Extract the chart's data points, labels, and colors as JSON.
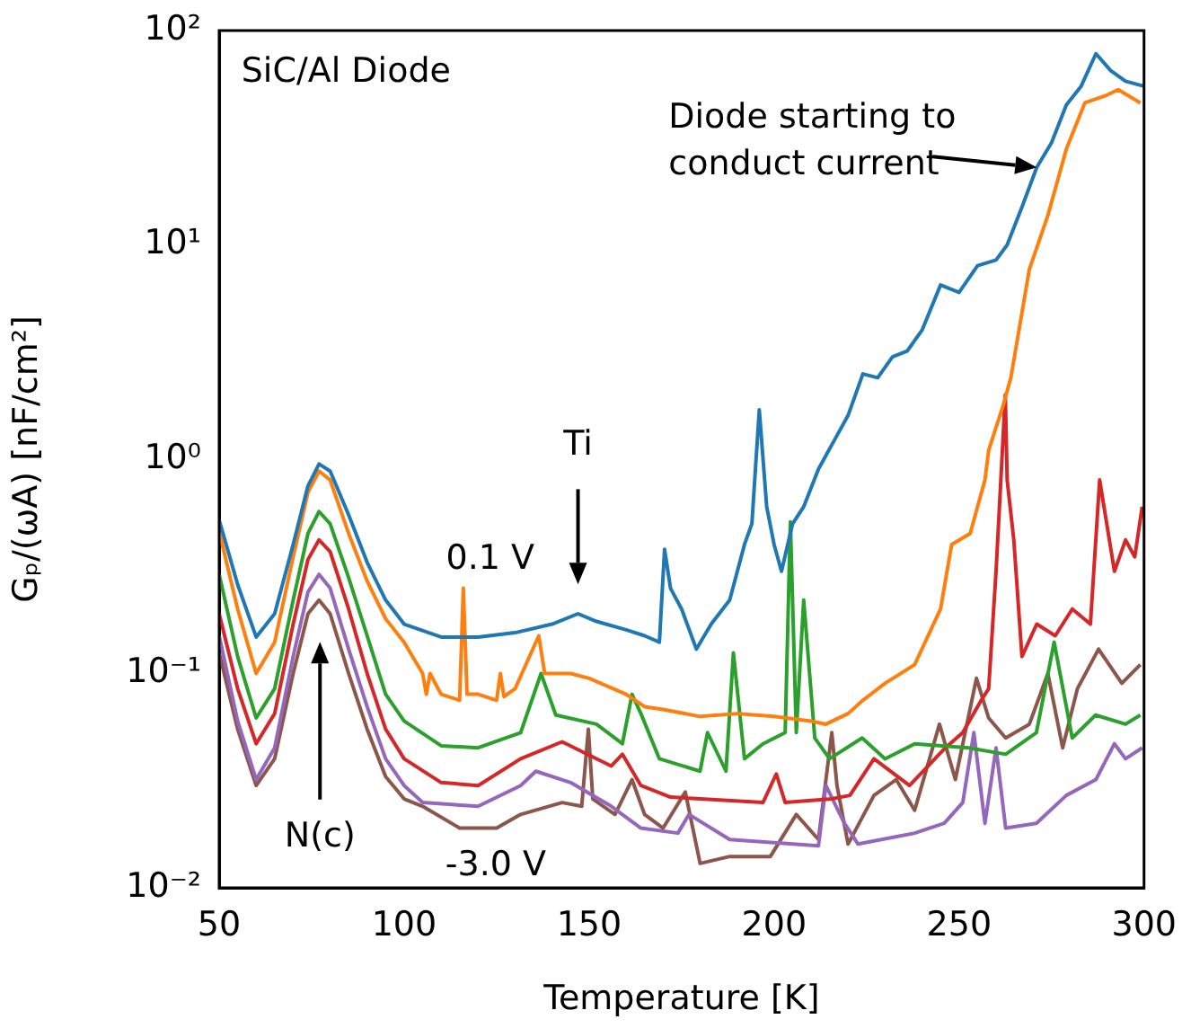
{
  "chart_data": {
    "type": "line",
    "xlabel": "Temperature [K]",
    "ylabel": "Gₚ/(ωA) [nF/cm²]",
    "xlim": [
      50,
      300
    ],
    "xticks": [
      50,
      100,
      150,
      200,
      250,
      300
    ],
    "ylim": [
      0.01,
      100
    ],
    "yticks": [
      {
        "value": 0.01,
        "label": "10⁻²"
      },
      {
        "value": 0.1,
        "label": "10⁻¹"
      },
      {
        "value": 1,
        "label": "10⁰"
      },
      {
        "value": 10,
        "label": "10¹"
      },
      {
        "value": 100,
        "label": "10²"
      }
    ],
    "log": "y",
    "grid": false,
    "legend": false,
    "marker": "none",
    "line_style": "solid",
    "annotations": [
      "SiC/Al Diode",
      {
        "text": "Diode starting to\nconduct current",
        "x": 271,
        "y": 23
      },
      "Ti",
      "N(c)",
      "0.1 V",
      "-3.0 V"
    ],
    "series": [
      {
        "color": "#1f77b4",
        "x": [
          50,
          55,
          60,
          65,
          70,
          74,
          77,
          80,
          85,
          90,
          95,
          100,
          110,
          120,
          130,
          140,
          147,
          152,
          160,
          165,
          169,
          170.4,
          172,
          175,
          179,
          183,
          188,
          192,
          194,
          196,
          198,
          200,
          202,
          205,
          208,
          212,
          216,
          220,
          224,
          228,
          232,
          236,
          240,
          245,
          250,
          255,
          260,
          263,
          267,
          271,
          275,
          279,
          283,
          287,
          291,
          295,
          300
        ],
        "values": [
          0.52,
          0.26,
          0.148,
          0.19,
          0.4,
          0.75,
          0.95,
          0.88,
          0.55,
          0.33,
          0.22,
          0.17,
          0.148,
          0.148,
          0.155,
          0.17,
          0.19,
          0.175,
          0.16,
          0.15,
          0.14,
          0.38,
          0.25,
          0.2,
          0.13,
          0.17,
          0.22,
          0.4,
          0.5,
          1.7,
          0.6,
          0.4,
          0.3,
          0.5,
          0.6,
          0.9,
          1.2,
          1.6,
          2.5,
          2.4,
          3.0,
          3.2,
          4.0,
          6.5,
          6.0,
          8.0,
          8.5,
          10,
          15,
          23,
          30,
          45,
          55,
          78,
          65,
          58,
          55
        ]
      },
      {
        "color": "#ff7f0e",
        "x": [
          50,
          55,
          60,
          65,
          70,
          74,
          77,
          80,
          85,
          90,
          95,
          100,
          105,
          106,
          107,
          110,
          115,
          116,
          117,
          120,
          125,
          126,
          127,
          130,
          136.4,
          138,
          145,
          150,
          160,
          165,
          170,
          180,
          190,
          200,
          210,
          214,
          220,
          224,
          230,
          238,
          245,
          248,
          253,
          257,
          258,
          262,
          264,
          269,
          274,
          279,
          284,
          290,
          293,
          299
        ],
        "values": [
          0.46,
          0.2,
          0.1,
          0.14,
          0.35,
          0.7,
          0.88,
          0.8,
          0.45,
          0.27,
          0.18,
          0.14,
          0.1,
          0.08,
          0.1,
          0.08,
          0.075,
          0.25,
          0.08,
          0.08,
          0.075,
          0.1,
          0.078,
          0.085,
          0.15,
          0.1,
          0.1,
          0.095,
          0.08,
          0.07,
          0.068,
          0.063,
          0.065,
          0.063,
          0.06,
          0.058,
          0.065,
          0.075,
          0.09,
          0.11,
          0.2,
          0.4,
          0.45,
          0.8,
          1.1,
          1.8,
          2.4,
          7.7,
          13.7,
          28,
          46,
          50,
          53,
          46
        ]
      },
      {
        "color": "#2ca02c",
        "x": [
          50,
          55,
          60,
          65,
          70,
          74,
          77,
          80,
          85,
          90,
          95,
          100,
          110,
          120,
          131.5,
          137,
          141,
          152,
          159,
          161.6,
          164,
          169,
          180,
          182,
          187,
          189,
          192,
          197,
          203,
          204.4,
          206,
          208,
          211,
          215,
          223.8,
          230,
          238,
          252.6,
          262.6,
          270.9,
          275.7,
          280.6,
          286.9,
          295,
          299
        ],
        "values": [
          0.29,
          0.12,
          0.062,
          0.085,
          0.22,
          0.45,
          0.57,
          0.5,
          0.28,
          0.15,
          0.08,
          0.06,
          0.046,
          0.045,
          0.053,
          0.1,
          0.064,
          0.058,
          0.047,
          0.08,
          0.065,
          0.04,
          0.035,
          0.053,
          0.035,
          0.125,
          0.04,
          0.047,
          0.053,
          0.51,
          0.053,
          0.22,
          0.05,
          0.04,
          0.05,
          0.04,
          0.047,
          0.045,
          0.042,
          0.053,
          0.14,
          0.05,
          0.064,
          0.058,
          0.064
        ]
      },
      {
        "color": "#d62728",
        "x": [
          50,
          55,
          60,
          65,
          70,
          74,
          77,
          80,
          85,
          90,
          95,
          100,
          110,
          120,
          131.5,
          142.7,
          156,
          159,
          164,
          172,
          197,
          200.6,
          203,
          215.6,
          220.5,
          227,
          236.6,
          246.3,
          251,
          256,
          258,
          260,
          262.5,
          263,
          264.8,
          267,
          271,
          276,
          280.6,
          285.5,
          288,
          292,
          295,
          297.5,
          299.5
        ],
        "values": [
          0.19,
          0.085,
          0.047,
          0.065,
          0.17,
          0.34,
          0.42,
          0.37,
          0.2,
          0.1,
          0.055,
          0.04,
          0.031,
          0.03,
          0.04,
          0.048,
          0.037,
          0.042,
          0.03,
          0.0265,
          0.025,
          0.034,
          0.025,
          0.026,
          0.027,
          0.04,
          0.03,
          0.045,
          0.053,
          0.075,
          0.085,
          0.3,
          2.0,
          0.8,
          0.42,
          0.12,
          0.17,
          0.15,
          0.2,
          0.17,
          0.8,
          0.3,
          0.42,
          0.35,
          0.6
        ]
      },
      {
        "color": "#9467bd",
        "x": [
          50,
          55,
          60,
          65,
          70,
          74,
          77,
          80,
          85,
          90,
          95,
          100,
          105,
          120,
          131.5,
          135.6,
          145,
          156,
          164,
          174,
          177,
          188,
          212,
          214,
          219,
          222.7,
          238,
          246,
          251,
          254,
          257,
          260,
          262.6,
          270.9,
          279,
          287,
          292,
          295,
          299.5
        ],
        "values": [
          0.15,
          0.06,
          0.032,
          0.045,
          0.12,
          0.24,
          0.29,
          0.25,
          0.13,
          0.07,
          0.04,
          0.03,
          0.025,
          0.024,
          0.03,
          0.035,
          0.031,
          0.024,
          0.019,
          0.018,
          0.022,
          0.0168,
          0.0157,
          0.03,
          0.02,
          0.016,
          0.018,
          0.02,
          0.025,
          0.053,
          0.02,
          0.045,
          0.019,
          0.02,
          0.027,
          0.032,
          0.047,
          0.04,
          0.045
        ]
      },
      {
        "color": "#8c564b",
        "x": [
          50,
          55,
          60,
          65,
          70,
          74,
          77,
          80,
          85,
          90,
          95,
          100,
          105,
          115,
          125,
          131.5,
          142.7,
          148,
          149.8,
          151,
          157,
          161.6,
          165,
          170,
          176,
          180,
          188,
          199,
          206,
          212,
          215.6,
          217,
          220,
          227,
          233,
          238,
          244.7,
          249,
          254.7,
          258,
          262.6,
          269,
          274,
          278,
          282,
          287.7,
          294,
          299
        ],
        "values": [
          0.125,
          0.055,
          0.03,
          0.04,
          0.1,
          0.19,
          0.22,
          0.19,
          0.1,
          0.055,
          0.033,
          0.026,
          0.024,
          0.019,
          0.019,
          0.022,
          0.025,
          0.024,
          0.055,
          0.026,
          0.022,
          0.032,
          0.022,
          0.019,
          0.028,
          0.013,
          0.014,
          0.014,
          0.022,
          0.0168,
          0.053,
          0.03,
          0.016,
          0.027,
          0.032,
          0.023,
          0.058,
          0.032,
          0.095,
          0.062,
          0.05,
          0.058,
          0.1,
          0.045,
          0.085,
          0.13,
          0.09,
          0.11
        ]
      }
    ]
  }
}
